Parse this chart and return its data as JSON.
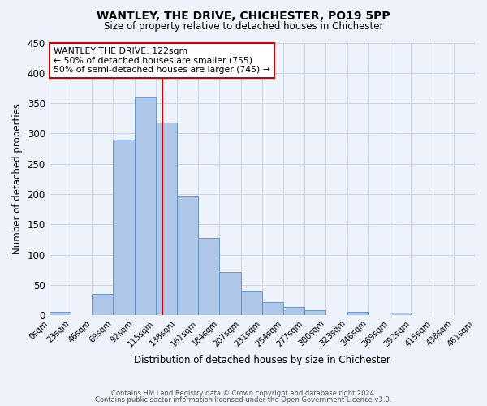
{
  "title": "WANTLEY, THE DRIVE, CHICHESTER, PO19 5PP",
  "subtitle": "Size of property relative to detached houses in Chichester",
  "xlabel": "Distribution of detached houses by size in Chichester",
  "ylabel": "Number of detached properties",
  "bar_color": "#aec6e8",
  "bar_edge_color": "#5b8ec4",
  "background_color": "#eef2fa",
  "grid_color": "#c8d4e8",
  "vline_x": 122,
  "vline_color": "#cc0000",
  "bin_width": 23,
  "bar_values": [
    5,
    0,
    35,
    290,
    360,
    318,
    197,
    127,
    71,
    41,
    22,
    13,
    8,
    0,
    5,
    0,
    4,
    0,
    0
  ],
  "x_tick_labels": [
    "0sqm",
    "23sqm",
    "46sqm",
    "69sqm",
    "92sqm",
    "115sqm",
    "138sqm",
    "161sqm",
    "184sqm",
    "207sqm",
    "231sqm",
    "254sqm",
    "277sqm",
    "300sqm",
    "323sqm",
    "346sqm",
    "369sqm",
    "392sqm",
    "415sqm",
    "438sqm",
    "461sqm"
  ],
  "ylim": [
    0,
    450
  ],
  "yticks": [
    0,
    50,
    100,
    150,
    200,
    250,
    300,
    350,
    400,
    450
  ],
  "annotation_title": "WANTLEY THE DRIVE: 122sqm",
  "annotation_line1": "← 50% of detached houses are smaller (755)",
  "annotation_line2": "50% of semi-detached houses are larger (745) →",
  "annotation_box_color": "#ffffff",
  "annotation_edge_color": "#cc0000",
  "footer_line1": "Contains HM Land Registry data © Crown copyright and database right 2024.",
  "footer_line2": "Contains public sector information licensed under the Open Government Licence v3.0."
}
